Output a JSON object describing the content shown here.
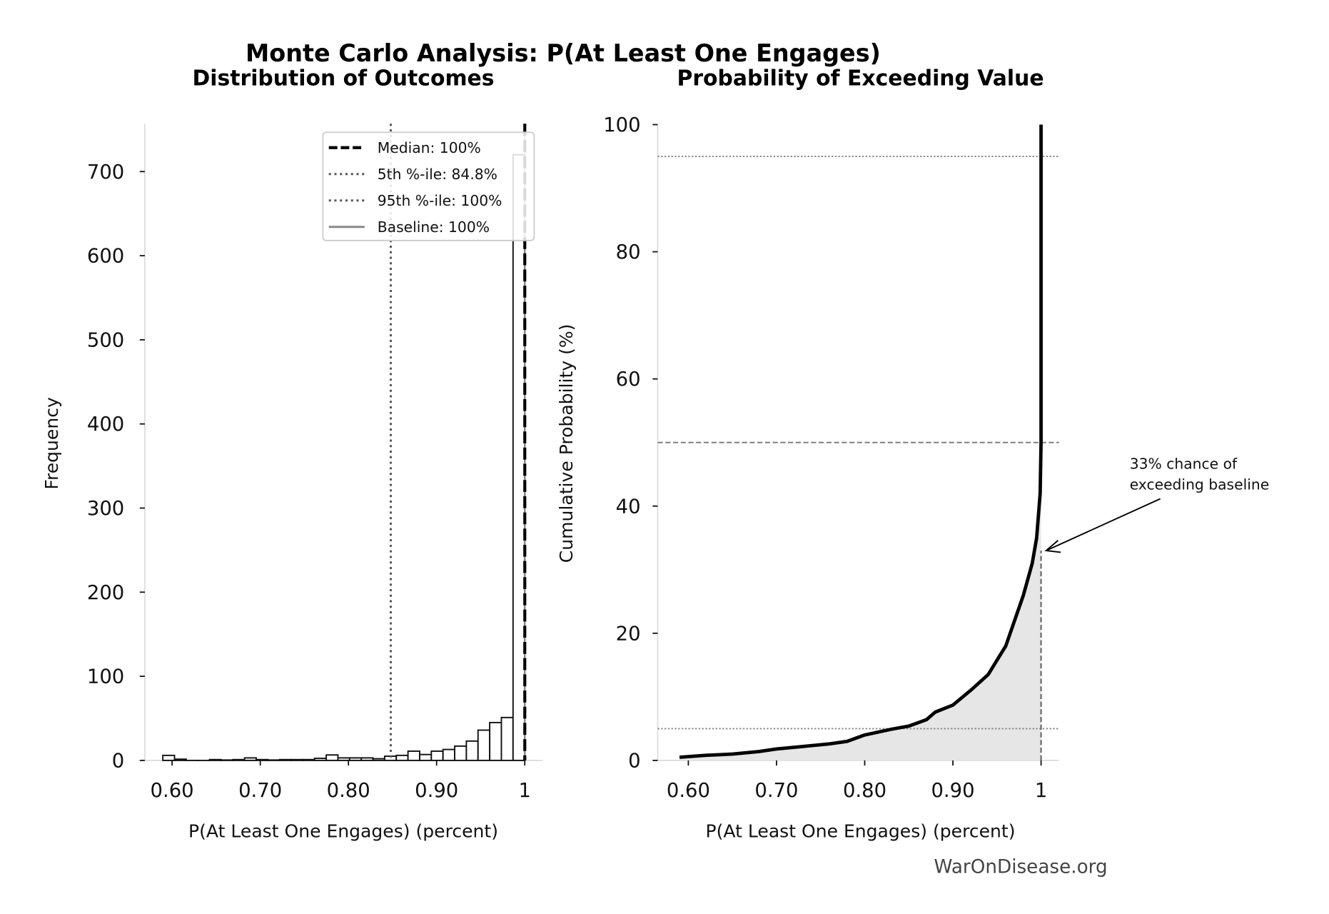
{
  "title": "Monte Carlo Analysis: P(At Least One Engages)",
  "watermark": "WarOnDisease.org",
  "chart_data": [
    {
      "type": "bar",
      "subtitle": "Distribution of Outcomes",
      "xlabel": "P(At Least One Engages) (percent)",
      "ylabel": "Frequency",
      "xlim": [
        0.57,
        1.02
      ],
      "ylim": [
        0,
        755
      ],
      "xticks": [
        0.6,
        0.7,
        0.8,
        0.9,
        1.0
      ],
      "xtick_labels": [
        "0.60",
        "0.70",
        "0.80",
        "0.90",
        "1"
      ],
      "yticks": [
        0,
        100,
        200,
        300,
        400,
        500,
        600,
        700
      ],
      "ytick_labels": [
        "0",
        "100",
        "200",
        "300",
        "400",
        "500",
        "600",
        "700"
      ],
      "bin_start": 0.5895,
      "bin_width": 0.01324,
      "values": [
        6,
        1.5,
        0,
        0,
        1,
        0.5,
        1,
        3,
        1,
        0.5,
        1,
        1,
        1,
        2.5,
        6.5,
        3,
        3,
        3,
        2,
        5,
        6,
        11,
        7,
        11,
        13,
        17,
        23,
        36,
        45,
        51,
        720
      ],
      "lines": {
        "median": 1.0,
        "p5": 0.848,
        "p95": 1.0,
        "baseline": 1.0
      },
      "legend": [
        {
          "label": "Median: 100%",
          "style": "dashed"
        },
        {
          "label": "5th %-ile: 84.8%",
          "style": "dotted"
        },
        {
          "label": "95th %-ile: 100%",
          "style": "dotted"
        },
        {
          "label": "Baseline: 100%",
          "style": "solid-gray"
        }
      ],
      "legend_position": "top-right"
    },
    {
      "type": "area",
      "subtitle": "Probability of Exceeding Value",
      "xlabel": "P(At Least One Engages) (percent)",
      "ylabel": "Cumulative Probability (%)",
      "xlim": [
        0.57,
        1.02
      ],
      "ylim": [
        0,
        100
      ],
      "xticks": [
        0.6,
        0.7,
        0.8,
        0.9,
        1.0
      ],
      "xtick_labels": [
        "0.60",
        "0.70",
        "0.80",
        "0.90",
        "1"
      ],
      "yticks": [
        0,
        20,
        40,
        60,
        80,
        100
      ],
      "ytick_labels": [
        "0",
        "20",
        "40",
        "60",
        "80",
        "100"
      ],
      "x": [
        0.59,
        0.62,
        0.65,
        0.68,
        0.7,
        0.73,
        0.76,
        0.78,
        0.8,
        0.83,
        0.85,
        0.87,
        0.88,
        0.9,
        0.92,
        0.94,
        0.96,
        0.97,
        0.98,
        0.99,
        0.995,
        0.999,
        1.0,
        1.0
      ],
      "y": [
        0.5,
        0.8,
        1.0,
        1.4,
        1.8,
        2.2,
        2.6,
        3.0,
        4.0,
        4.9,
        5.4,
        6.4,
        7.6,
        8.7,
        11,
        13.5,
        18,
        22,
        26,
        31,
        35,
        42,
        50,
        100
      ],
      "hlines": [
        95,
        50,
        5
      ],
      "baseline_x": 1.0,
      "baseline_y": 33,
      "annotation": {
        "text_line1": "33% chance of",
        "text_line2": "exceeding baseline",
        "target_x": 1.0,
        "target_y": 33
      }
    }
  ]
}
